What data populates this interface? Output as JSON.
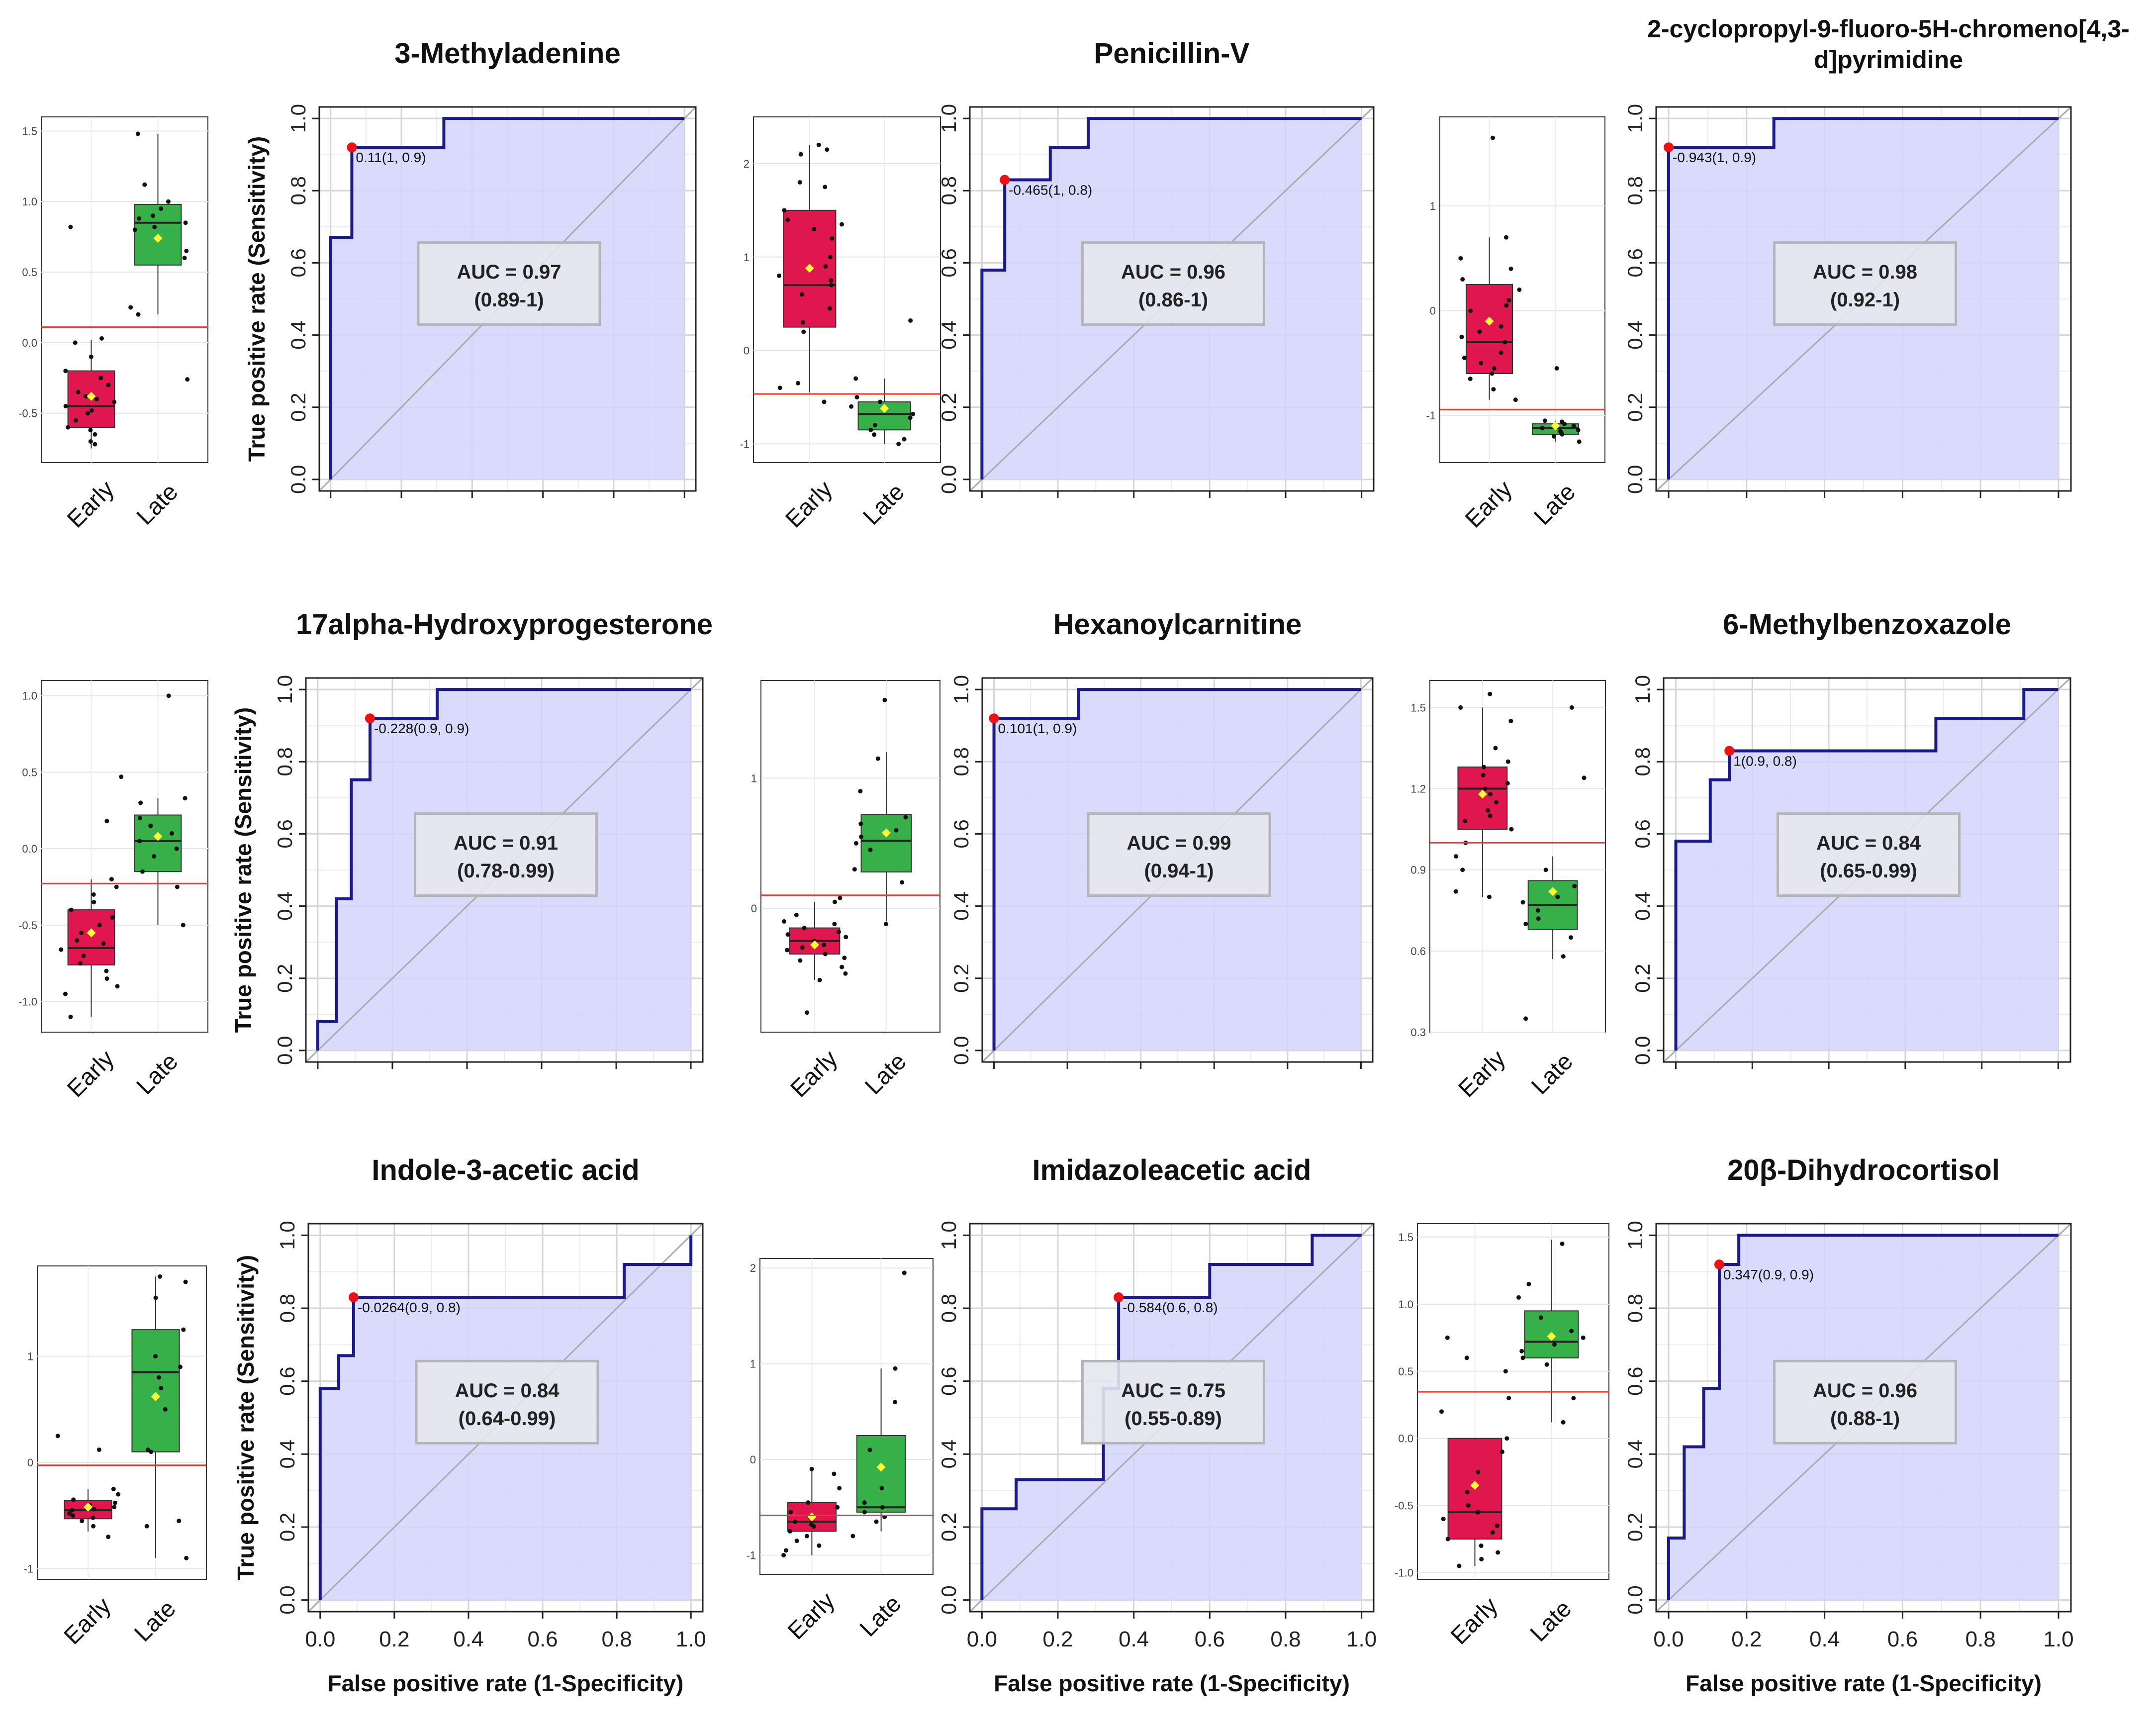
{
  "figure": {
    "ylabel": "True positive rate (Sensitivity)",
    "xlabel": "False positive rate (1-Specificity)",
    "groups": [
      "Early",
      "Late"
    ]
  },
  "colors": {
    "early": "#e0174f",
    "late": "#38b04a",
    "roc_fill": "#d2d4fb",
    "roc_line": "#1a1a8c",
    "cutoff": "#ff3333",
    "mean": "#ffff33",
    "diag": "#aaaaaa"
  },
  "chart_data": [
    {
      "type": "roc",
      "title": "3-Methyladenine",
      "auc_label": "AUC = 0.97",
      "ci_label": "(0.89-1)",
      "point_label": "0.11(1, 0.9)",
      "best_point": [
        0.06,
        0.92
      ],
      "curve": [
        [
          0,
          0
        ],
        [
          0,
          0.67
        ],
        [
          0.06,
          0.67
        ],
        [
          0.06,
          0.92
        ],
        [
          0.32,
          0.92
        ],
        [
          0.32,
          1
        ],
        [
          1,
          1
        ]
      ],
      "box": {
        "ylim": [
          -0.85,
          1.6
        ],
        "ticks": [
          "-0.5",
          "0.0",
          "0.5",
          "1.0",
          "1.5"
        ],
        "tick_values": [
          -0.5,
          0,
          0.5,
          1,
          1.5
        ],
        "cutoff": 0.11,
        "early": {
          "q1": -0.6,
          "median": -0.45,
          "q3": -0.2,
          "lo": -0.75,
          "hi": 0.02,
          "mean": -0.38,
          "points": [
            -0.7,
            -0.65,
            -0.6,
            -0.55,
            -0.5,
            -0.48,
            -0.45,
            -0.42,
            -0.4,
            -0.38,
            -0.35,
            -0.3,
            -0.25,
            -0.2,
            -0.1,
            0.0,
            0.03,
            0.82,
            -0.72,
            -0.62
          ]
        },
        "late": {
          "q1": 0.55,
          "median": 0.85,
          "q3": 0.98,
          "lo": 0.2,
          "hi": 1.48,
          "mean": 0.74,
          "points": [
            0.2,
            0.25,
            0.6,
            0.65,
            0.8,
            0.82,
            0.85,
            0.88,
            0.9,
            0.95,
            1.0,
            1.12,
            1.48,
            -0.26
          ]
        }
      }
    },
    {
      "type": "roc",
      "title": "Penicillin-V",
      "auc_label": "AUC = 0.96",
      "ci_label": "(0.86-1)",
      "point_label": "-0.465(1, 0.8)",
      "best_point": [
        0.06,
        0.83
      ],
      "curve": [
        [
          0,
          0
        ],
        [
          0,
          0.58
        ],
        [
          0.06,
          0.58
        ],
        [
          0.06,
          0.83
        ],
        [
          0.18,
          0.83
        ],
        [
          0.18,
          0.92
        ],
        [
          0.28,
          0.92
        ],
        [
          0.28,
          1
        ],
        [
          1,
          1
        ]
      ],
      "box": {
        "ylim": [
          -1.2,
          2.5
        ],
        "ticks": [
          "-1",
          "0",
          "1",
          "2"
        ],
        "tick_values": [
          -1,
          0,
          1,
          2
        ],
        "cutoff": -0.465,
        "early": {
          "q1": 0.25,
          "median": 0.7,
          "q3": 1.5,
          "lo": -0.45,
          "hi": 2.2,
          "mean": 0.88,
          "points": [
            -0.55,
            -0.4,
            -0.35,
            0.2,
            0.3,
            0.45,
            0.6,
            0.7,
            0.75,
            0.8,
            0.9,
            1.0,
            1.2,
            1.3,
            1.4,
            1.5,
            1.75,
            1.8,
            2.1,
            2.2,
            2.15,
            1.35
          ]
        },
        "late": {
          "q1": -0.85,
          "median": -0.68,
          "q3": -0.55,
          "lo": -1.0,
          "hi": -0.3,
          "mean": -0.62,
          "points": [
            -1.0,
            -0.95,
            -0.9,
            -0.8,
            -0.72,
            -0.68,
            -0.6,
            -0.55,
            -0.5,
            -0.3,
            0.32,
            -0.85
          ]
        }
      }
    },
    {
      "type": "roc",
      "title": "2-cyclopropyl-9-fluoro-5H-chromeno[4,3-d]pyrimidine",
      "title_lines": [
        "2-cyclopropyl-9-fluoro-5H-chromeno[4,3-",
        "d]pyrimidine"
      ],
      "auc_label": "AUC = 0.98",
      "ci_label": "(0.92-1)",
      "point_label": "-0.943(1, 0.9)",
      "best_point": [
        0,
        0.92
      ],
      "curve": [
        [
          0,
          0
        ],
        [
          0,
          0.92
        ],
        [
          0.27,
          0.92
        ],
        [
          0.27,
          1
        ],
        [
          1,
          1
        ]
      ],
      "box": {
        "ylim": [
          -1.45,
          1.85
        ],
        "ticks": [
          "-1",
          "0",
          "1"
        ],
        "tick_values": [
          -1,
          0,
          1
        ],
        "cutoff": -0.943,
        "early": {
          "q1": -0.6,
          "median": -0.3,
          "q3": 0.25,
          "lo": -0.85,
          "hi": 0.7,
          "mean": -0.1,
          "points": [
            -0.85,
            -0.75,
            -0.6,
            -0.55,
            -0.5,
            -0.45,
            -0.4,
            -0.3,
            -0.25,
            -0.15,
            0.0,
            0.1,
            0.2,
            0.3,
            0.4,
            0.5,
            0.7,
            1.65,
            -0.65,
            0.05,
            -0.2
          ]
        },
        "late": {
          "q1": -1.18,
          "median": -1.12,
          "q3": -1.08,
          "lo": -1.25,
          "hi": -1.05,
          "mean": -1.1,
          "points": [
            -1.25,
            -1.2,
            -1.18,
            -1.15,
            -1.12,
            -1.1,
            -1.08,
            -1.06,
            -1.05,
            -0.55,
            -1.14,
            -1.16
          ]
        }
      }
    },
    {
      "type": "roc",
      "title": "17alpha-Hydroxyprogesterone",
      "auc_label": "AUC = 0.91",
      "ci_label": "(0.78-0.99)",
      "point_label": "-0.228(0.9, 0.9)",
      "best_point": [
        0.14,
        0.92
      ],
      "curve": [
        [
          0,
          0
        ],
        [
          0,
          0.08
        ],
        [
          0.05,
          0.08
        ],
        [
          0.05,
          0.42
        ],
        [
          0.09,
          0.42
        ],
        [
          0.09,
          0.75
        ],
        [
          0.14,
          0.75
        ],
        [
          0.14,
          0.92
        ],
        [
          0.32,
          0.92
        ],
        [
          0.32,
          1
        ],
        [
          1,
          1
        ]
      ],
      "box": {
        "ylim": [
          -1.2,
          1.1
        ],
        "ticks": [
          "-1.0",
          "-0.5",
          "0.0",
          "0.5",
          "1.0"
        ],
        "tick_values": [
          -1,
          -0.5,
          0,
          0.5,
          1
        ],
        "cutoff": -0.228,
        "early": {
          "q1": -0.76,
          "median": -0.65,
          "q3": -0.4,
          "lo": -1.1,
          "hi": -0.2,
          "mean": -0.55,
          "points": [
            -1.1,
            -0.95,
            -0.85,
            -0.8,
            -0.75,
            -0.7,
            -0.66,
            -0.62,
            -0.6,
            -0.55,
            -0.5,
            -0.45,
            -0.4,
            -0.35,
            -0.3,
            -0.25,
            -0.2,
            0.18,
            0.47,
            -0.9
          ]
        },
        "late": {
          "q1": -0.15,
          "median": 0.05,
          "q3": 0.22,
          "lo": -0.5,
          "hi": 0.33,
          "mean": 0.08,
          "points": [
            -0.5,
            -0.25,
            -0.15,
            -0.05,
            0.0,
            0.05,
            0.1,
            0.15,
            0.2,
            0.3,
            0.33,
            1.0
          ]
        }
      }
    },
    {
      "type": "roc",
      "title": "Hexanoylcarnitine",
      "auc_label": "AUC = 0.99",
      "ci_label": "(0.94-1)",
      "point_label": "0.101(1, 0.9)",
      "best_point": [
        0,
        0.92
      ],
      "curve": [
        [
          0,
          0
        ],
        [
          0,
          0.92
        ],
        [
          0.23,
          0.92
        ],
        [
          0.23,
          1
        ],
        [
          1,
          1
        ]
      ],
      "box": {
        "ylim": [
          -0.95,
          1.75
        ],
        "ticks": [
          "0",
          "1"
        ],
        "tick_values": [
          0,
          1
        ],
        "cutoff": 0.101,
        "early": {
          "q1": -0.35,
          "median": -0.25,
          "q3": -0.15,
          "lo": -0.55,
          "hi": 0.05,
          "mean": -0.28,
          "points": [
            -0.8,
            -0.55,
            -0.5,
            -0.45,
            -0.4,
            -0.35,
            -0.3,
            -0.28,
            -0.25,
            -0.22,
            -0.2,
            -0.18,
            -0.15,
            -0.1,
            -0.05,
            0.05,
            0.08,
            -0.38,
            -0.12,
            -0.32
          ]
        },
        "late": {
          "q1": 0.28,
          "median": 0.52,
          "q3": 0.72,
          "lo": -0.1,
          "hi": 1.2,
          "mean": 0.58,
          "points": [
            -0.12,
            0.2,
            0.3,
            0.45,
            0.5,
            0.55,
            0.6,
            0.65,
            0.7,
            0.9,
            1.15,
            1.6
          ]
        }
      }
    },
    {
      "type": "roc",
      "title": "6-Methylbenzoxazole",
      "auc_label": "AUC = 0.84",
      "ci_label": "(0.65-0.99)",
      "point_label": "1(0.9, 0.8)",
      "best_point": [
        0.14,
        0.83
      ],
      "curve": [
        [
          0,
          0
        ],
        [
          0,
          0.58
        ],
        [
          0.09,
          0.58
        ],
        [
          0.09,
          0.75
        ],
        [
          0.14,
          0.75
        ],
        [
          0.14,
          0.83
        ],
        [
          0.68,
          0.83
        ],
        [
          0.68,
          0.92
        ],
        [
          0.91,
          0.92
        ],
        [
          0.91,
          1
        ],
        [
          1,
          1
        ]
      ],
      "box": {
        "ylim": [
          0.3,
          1.6
        ],
        "ticks": [
          "0.3",
          "0.6",
          "0.9",
          "1.2",
          "1.5"
        ],
        "tick_values": [
          0.3,
          0.6,
          0.9,
          1.2,
          1.5
        ],
        "cutoff": 1.0,
        "early": {
          "q1": 1.05,
          "median": 1.2,
          "q3": 1.28,
          "lo": 0.8,
          "hi": 1.5,
          "mean": 1.18,
          "points": [
            0.8,
            0.82,
            0.9,
            0.95,
            1.0,
            1.05,
            1.1,
            1.12,
            1.15,
            1.18,
            1.2,
            1.22,
            1.25,
            1.28,
            1.3,
            1.35,
            1.45,
            1.5,
            1.55,
            1.08
          ]
        },
        "late": {
          "q1": 0.68,
          "median": 0.77,
          "q3": 0.86,
          "lo": 0.57,
          "hi": 0.95,
          "mean": 0.82,
          "points": [
            0.35,
            0.58,
            0.65,
            0.7,
            0.75,
            0.78,
            0.8,
            0.84,
            0.9,
            1.24,
            1.5,
            0.72
          ]
        }
      }
    },
    {
      "type": "roc",
      "title": "Indole-3-acetic acid",
      "auc_label": "AUC = 0.84",
      "ci_label": "(0.64-0.99)",
      "point_label": "-0.0264(0.9, 0.8)",
      "best_point": [
        0.09,
        0.83
      ],
      "curve": [
        [
          0,
          0
        ],
        [
          0,
          0.58
        ],
        [
          0.05,
          0.58
        ],
        [
          0.05,
          0.67
        ],
        [
          0.09,
          0.67
        ],
        [
          0.09,
          0.83
        ],
        [
          0.82,
          0.83
        ],
        [
          0.82,
          0.92
        ],
        [
          1,
          0.92
        ],
        [
          1,
          1
        ]
      ],
      "box": {
        "ylim": [
          -1.1,
          1.85
        ],
        "ticks": [
          "-1",
          "0",
          "1"
        ],
        "tick_values": [
          -1,
          0,
          1
        ],
        "cutoff": -0.0264,
        "early": {
          "q1": -0.53,
          "median": -0.45,
          "q3": -0.36,
          "lo": -0.65,
          "hi": -0.25,
          "mean": -0.42,
          "points": [
            -0.7,
            -0.6,
            -0.55,
            -0.5,
            -0.48,
            -0.45,
            -0.42,
            -0.4,
            -0.38,
            -0.35,
            -0.3,
            -0.25,
            0.12,
            0.25,
            -0.52,
            -0.44
          ]
        },
        "late": {
          "q1": 0.1,
          "median": 0.85,
          "q3": 1.25,
          "lo": -0.9,
          "hi": 1.75,
          "mean": 0.62,
          "points": [
            -0.9,
            -0.6,
            0.1,
            0.12,
            0.5,
            0.7,
            0.8,
            0.9,
            1.0,
            1.25,
            1.55,
            1.75,
            1.7,
            -0.55
          ]
        }
      }
    },
    {
      "type": "roc",
      "title": "Imidazoleacetic acid",
      "auc_label": "AUC = 0.75",
      "ci_label": "(0.55-0.89)",
      "point_label": "-0.584(0.6, 0.8)",
      "best_point": [
        0.36,
        0.83
      ],
      "curve": [
        [
          0,
          0
        ],
        [
          0,
          0.25
        ],
        [
          0.09,
          0.25
        ],
        [
          0.09,
          0.33
        ],
        [
          0.32,
          0.33
        ],
        [
          0.32,
          0.58
        ],
        [
          0.36,
          0.58
        ],
        [
          0.36,
          0.83
        ],
        [
          0.6,
          0.83
        ],
        [
          0.6,
          0.92
        ],
        [
          0.87,
          0.92
        ],
        [
          0.87,
          1
        ],
        [
          1,
          1
        ]
      ],
      "box": {
        "ylim": [
          -1.2,
          2.1
        ],
        "ticks": [
          "-1",
          "0",
          "1",
          "2"
        ],
        "tick_values": [
          -1,
          0,
          1,
          2
        ],
        "cutoff": -0.584,
        "early": {
          "q1": -0.75,
          "median": -0.65,
          "q3": -0.45,
          "lo": -1.0,
          "hi": -0.1,
          "mean": -0.6,
          "points": [
            -1.0,
            -0.95,
            -0.9,
            -0.8,
            -0.75,
            -0.7,
            -0.65,
            -0.6,
            -0.55,
            -0.5,
            -0.45,
            -0.3,
            -0.15,
            -0.1,
            -0.85,
            -0.68
          ]
        },
        "late": {
          "q1": -0.55,
          "median": -0.5,
          "q3": 0.25,
          "lo": -0.75,
          "hi": 0.95,
          "mean": -0.08,
          "points": [
            -0.8,
            -0.6,
            -0.55,
            -0.5,
            -0.45,
            -0.3,
            0.1,
            0.6,
            0.95,
            1.95,
            -0.65
          ]
        }
      }
    },
    {
      "type": "roc",
      "title": "20β-Dihydrocortisol",
      "auc_label": "AUC = 0.96",
      "ci_label": "(0.88-1)",
      "point_label": "0.347(0.9, 0.9)",
      "best_point": [
        0.13,
        0.92
      ],
      "curve": [
        [
          0,
          0
        ],
        [
          0,
          0.17
        ],
        [
          0.04,
          0.17
        ],
        [
          0.04,
          0.42
        ],
        [
          0.09,
          0.42
        ],
        [
          0.09,
          0.58
        ],
        [
          0.13,
          0.58
        ],
        [
          0.13,
          0.92
        ],
        [
          0.18,
          0.92
        ],
        [
          0.18,
          1
        ],
        [
          1,
          1
        ]
      ],
      "box": {
        "ylim": [
          -1.05,
          1.6
        ],
        "ticks": [
          "-1.0",
          "-0.5",
          "0.0",
          "0.5",
          "1.0",
          "1.5"
        ],
        "tick_values": [
          -1,
          -0.5,
          0,
          0.5,
          1,
          1.5
        ],
        "cutoff": 0.347,
        "early": {
          "q1": -0.75,
          "median": -0.55,
          "q3": 0.0,
          "lo": -0.95,
          "hi": 0.0,
          "mean": -0.35,
          "points": [
            -0.95,
            -0.9,
            -0.85,
            -0.8,
            -0.75,
            -0.65,
            -0.55,
            -0.5,
            -0.4,
            -0.25,
            -0.1,
            0.0,
            0.2,
            0.3,
            0.5,
            0.6,
            0.75,
            -0.7,
            -0.6
          ]
        },
        "late": {
          "q1": 0.6,
          "median": 0.72,
          "q3": 0.95,
          "lo": 0.12,
          "hi": 1.48,
          "mean": 0.76,
          "points": [
            0.12,
            0.3,
            0.55,
            0.6,
            0.7,
            0.75,
            0.8,
            0.9,
            1.05,
            1.15,
            1.45,
            0.65
          ]
        }
      }
    }
  ]
}
